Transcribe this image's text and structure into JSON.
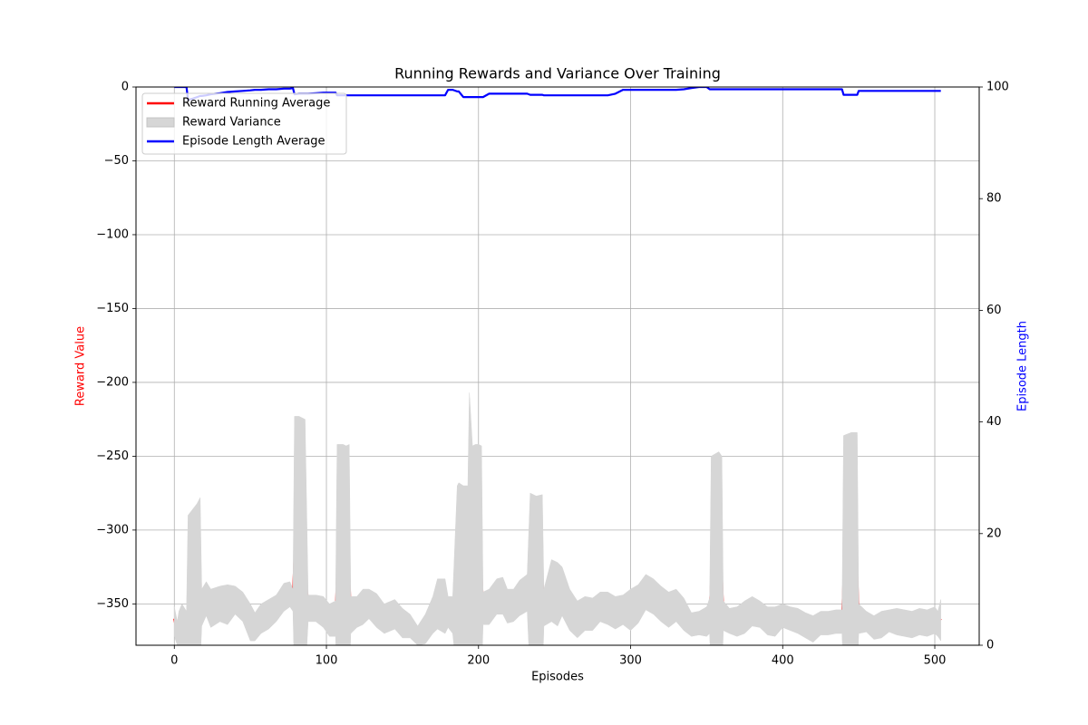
{
  "chart_data": {
    "type": "line",
    "title": "Running Rewards and Variance Over Training",
    "xlabel": "Episodes",
    "ylabel": "Reward Value",
    "y2label": "Episode Length",
    "ycolor": "red",
    "y2color": "blue",
    "grid": true,
    "legend": "upper left",
    "xlim": [
      -25.2,
      529.2
    ],
    "ylim": [
      -378,
      0
    ],
    "y2lim": [
      0,
      100
    ],
    "xticks": [
      0,
      100,
      200,
      300,
      400,
      500
    ],
    "yticks": [
      {
        "value": -350,
        "label": "−350"
      },
      {
        "value": -300,
        "label": "−300"
      },
      {
        "value": -250,
        "label": "−250"
      },
      {
        "value": -200,
        "label": "−200"
      },
      {
        "value": -150,
        "label": "−150"
      },
      {
        "value": -100,
        "label": "−100"
      },
      {
        "value": -50,
        "label": "−50"
      },
      0
    ],
    "y2ticks": [
      0,
      20,
      40,
      60,
      80,
      100
    ],
    "x": [
      0,
      2,
      3,
      5,
      8,
      9,
      12,
      15,
      17,
      18,
      21,
      24,
      30,
      35,
      40,
      45,
      50,
      53,
      57,
      62,
      67,
      72,
      76,
      78,
      79,
      82,
      86,
      88,
      93,
      98,
      102,
      106,
      107,
      111,
      113,
      115,
      116,
      120,
      124,
      128,
      133,
      138,
      145,
      150,
      155,
      160,
      165,
      170,
      173,
      178,
      180,
      183,
      186,
      187,
      190,
      193,
      194,
      196,
      198,
      200,
      202,
      203,
      207,
      212,
      216,
      219,
      223,
      227,
      232,
      234,
      238,
      242,
      243,
      248,
      252,
      255,
      260,
      265,
      270,
      275,
      280,
      285,
      290,
      295,
      300,
      305,
      310,
      315,
      320,
      325,
      330,
      335,
      340,
      345,
      350,
      352,
      353,
      358,
      360,
      361,
      365,
      370,
      375,
      380,
      385,
      390,
      395,
      400,
      405,
      410,
      415,
      420,
      425,
      430,
      435,
      439,
      440,
      445,
      449,
      450,
      455,
      460,
      465,
      470,
      475,
      480,
      485,
      490,
      495,
      500,
      502,
      504
    ],
    "series": [
      {
        "name": "Reward Running Average",
        "color": "#ff0000",
        "axis": "y",
        "values": [
          -360,
          -372,
          -367,
          -369,
          -368,
          -349,
          -346,
          -340,
          -333,
          -352,
          -346,
          -354,
          -350,
          -352,
          -347,
          -352,
          -362,
          -365,
          -360,
          -357,
          -353,
          -345,
          -343,
          -345,
          -318,
          -321,
          -322,
          -352,
          -352,
          -356,
          -360,
          -359,
          -330,
          -331,
          -333,
          -329,
          -358,
          -355,
          -352,
          -349,
          -355,
          -360,
          -357,
          -363,
          -365,
          -373,
          -367,
          -358,
          -350,
          -352,
          -355,
          -358,
          -356,
          -334,
          -334,
          -332,
          -305,
          -325,
          -328,
          -328,
          -329,
          -353,
          -352,
          -345,
          -344,
          -352,
          -351,
          -346,
          -343,
          -327,
          -333,
          -331,
          -353,
          -341,
          -343,
          -340,
          -356,
          -361,
          -357,
          -357,
          -352,
          -353,
          -356,
          -354,
          -354,
          -350,
          -342,
          -345,
          -350,
          -354,
          -351,
          -357,
          -364,
          -363,
          -363,
          -358,
          -332,
          -327,
          -331,
          -358,
          -362,
          -363,
          -359,
          -355,
          -357,
          -362,
          -362,
          -358,
          -360,
          -362,
          -365,
          -367,
          -363,
          -363,
          -362,
          -362,
          -332,
          -330,
          -331,
          -360,
          -362,
          -367,
          -365,
          -361,
          -362,
          -363,
          -364,
          -362,
          -363,
          -361,
          -363,
          -360
        ]
      },
      {
        "name": "Reward Variance",
        "color": "#d6d6d6",
        "axis": "y",
        "type": "band",
        "upper": [
          -352,
          -362,
          -355,
          -350,
          -355,
          -290,
          -286,
          -282,
          -278,
          -340,
          -335,
          -340,
          -338,
          -337,
          -338,
          -342,
          -350,
          -356,
          -350,
          -347,
          -344,
          -336,
          -335,
          -340,
          -223,
          -223,
          -225,
          -344,
          -344,
          -345,
          -350,
          -348,
          -242,
          -242,
          -243,
          -242,
          -345,
          -345,
          -340,
          -340,
          -343,
          -350,
          -347,
          -353,
          -357,
          -365,
          -357,
          -345,
          -333,
          -333,
          -345,
          -345,
          -270,
          -268,
          -270,
          -270,
          -207,
          -243,
          -242,
          -242,
          -243,
          -342,
          -340,
          -333,
          -332,
          -340,
          -340,
          -334,
          -330,
          -275,
          -277,
          -276,
          -340,
          -320,
          -322,
          -325,
          -340,
          -348,
          -345,
          -346,
          -342,
          -342,
          -345,
          -344,
          -340,
          -337,
          -330,
          -333,
          -338,
          -342,
          -340,
          -346,
          -356,
          -355,
          -352,
          -346,
          -250,
          -247,
          -250,
          -348,
          -353,
          -352,
          -348,
          -345,
          -348,
          -352,
          -352,
          -350,
          -352,
          -353,
          -356,
          -358,
          -355,
          -355,
          -354,
          -354,
          -236,
          -234,
          -234,
          -350,
          -355,
          -358,
          -355,
          -354,
          -353,
          -354,
          -355,
          -353,
          -354,
          -352,
          -355,
          -347
        ],
        "lower": [
          -372,
          -378,
          -378,
          -378,
          -378,
          -390,
          -390,
          -390,
          -390,
          -365,
          -358,
          -366,
          -362,
          -364,
          -357,
          -362,
          -375,
          -375,
          -370,
          -367,
          -362,
          -355,
          -352,
          -355,
          -400,
          -400,
          -400,
          -362,
          -362,
          -366,
          -372,
          -372,
          -400,
          -400,
          -400,
          -400,
          -370,
          -366,
          -364,
          -360,
          -366,
          -370,
          -367,
          -373,
          -373,
          -378,
          -377,
          -370,
          -367,
          -370,
          -366,
          -370,
          -400,
          -400,
          -400,
          -400,
          -400,
          -400,
          -400,
          -400,
          -400,
          -364,
          -364,
          -357,
          -357,
          -363,
          -362,
          -358,
          -355,
          -400,
          -400,
          -400,
          -365,
          -362,
          -365,
          -358,
          -368,
          -373,
          -368,
          -368,
          -362,
          -364,
          -367,
          -364,
          -368,
          -363,
          -354,
          -357,
          -362,
          -366,
          -362,
          -368,
          -372,
          -371,
          -372,
          -370,
          -400,
          -400,
          -400,
          -368,
          -370,
          -372,
          -370,
          -365,
          -366,
          -371,
          -372,
          -366,
          -368,
          -370,
          -373,
          -376,
          -371,
          -371,
          -370,
          -370,
          -400,
          -400,
          -400,
          -370,
          -369,
          -374,
          -373,
          -369,
          -371,
          -372,
          -373,
          -371,
          -372,
          -370,
          -372,
          -375
        ]
      },
      {
        "name": "Episode Length Average",
        "color": "#0000ff",
        "axis": "y2",
        "values": [
          100,
          100,
          100,
          100,
          100,
          97.7,
          97.9,
          98.2,
          98.4,
          98.4,
          98.5,
          98.7,
          98.9,
          99.1,
          99.2,
          99.3,
          99.4,
          99.5,
          99.5,
          99.6,
          99.6,
          99.7,
          99.7,
          99.8,
          98.7,
          98.8,
          98.8,
          98.8,
          98.9,
          99.0,
          99.0,
          99.0,
          98.5,
          98.5,
          98.5,
          98.5,
          98.5,
          98.5,
          98.5,
          98.5,
          98.5,
          98.5,
          98.5,
          98.5,
          98.5,
          98.5,
          98.5,
          98.5,
          98.5,
          98.5,
          99.5,
          99.5,
          99.2,
          99.2,
          98.2,
          98.2,
          98.2,
          98.2,
          98.2,
          98.2,
          98.2,
          98.2,
          98.8,
          98.8,
          98.8,
          98.8,
          98.8,
          98.8,
          98.8,
          98.6,
          98.6,
          98.6,
          98.5,
          98.5,
          98.5,
          98.5,
          98.5,
          98.5,
          98.5,
          98.5,
          98.5,
          98.5,
          98.8,
          99.5,
          99.5,
          99.5,
          99.5,
          99.5,
          99.5,
          99.5,
          99.5,
          99.6,
          99.8,
          100,
          100,
          99.6,
          99.6,
          99.6,
          99.6,
          99.6,
          99.6,
          99.6,
          99.6,
          99.6,
          99.6,
          99.6,
          99.6,
          99.6,
          99.6,
          99.6,
          99.6,
          99.6,
          99.6,
          99.6,
          99.6,
          99.6,
          98.6,
          98.6,
          98.6,
          99.3,
          99.3,
          99.3,
          99.3,
          99.3,
          99.3,
          99.3,
          99.3,
          99.3,
          99.3,
          99.3,
          99.3,
          99.3
        ]
      }
    ]
  }
}
